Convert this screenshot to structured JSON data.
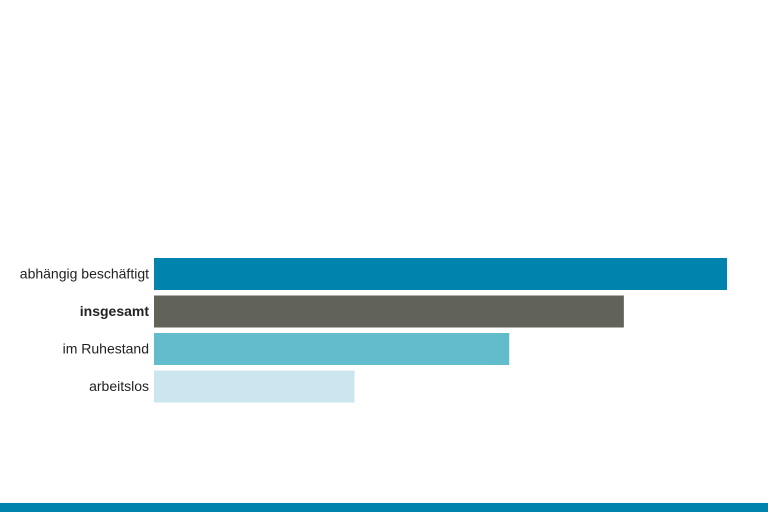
{
  "chart_data": {
    "type": "bar",
    "orientation": "horizontal",
    "categories": [
      "abhängig beschäftigt",
      "insgesamt",
      "im Ruhestand",
      "arbeitslos"
    ],
    "values": [
      100,
      82,
      62,
      35
    ],
    "colors": [
      "#0083ad",
      "#626358",
      "#62bccb",
      "#cce6ef"
    ],
    "bold": [
      false,
      true,
      false,
      false
    ],
    "xlim": [
      0,
      100
    ]
  }
}
